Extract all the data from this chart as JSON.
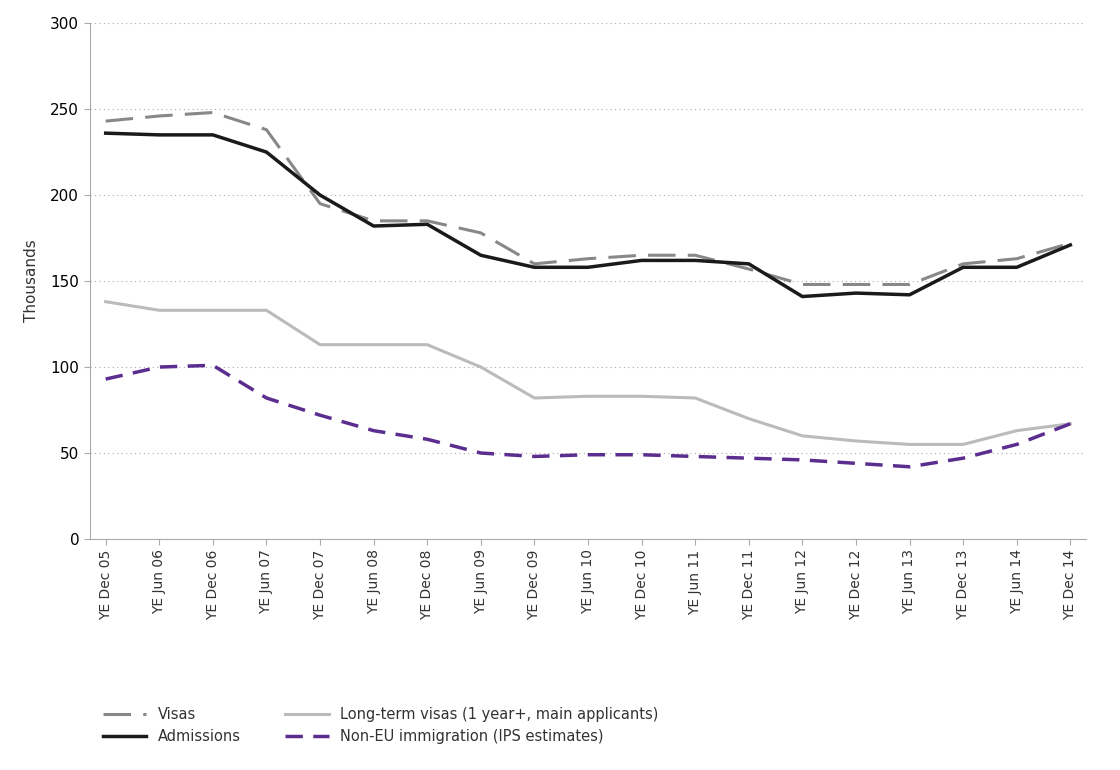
{
  "x_labels": [
    "YE Dec 05",
    "YE Jun 06",
    "YE Dec 06",
    "YE Jun 07",
    "YE Dec 07",
    "YE Jun 08",
    "YE Dec 08",
    "YE Jun 09",
    "YE Dec 09",
    "YE Jun 10",
    "YE Dec 10",
    "YE Jun 11",
    "YE Dec 11",
    "YE Jun 12",
    "YE Dec 12",
    "YE Jun 13",
    "YE Dec 13",
    "YE Jun 14",
    "YE Dec 14"
  ],
  "admissions": [
    236,
    235,
    235,
    225,
    200,
    182,
    183,
    165,
    158,
    158,
    162,
    162,
    160,
    141,
    143,
    142,
    158,
    158,
    171
  ],
  "visas": [
    243,
    246,
    248,
    238,
    195,
    185,
    185,
    178,
    160,
    163,
    165,
    165,
    157,
    148,
    148,
    148,
    160,
    163,
    172
  ],
  "long_term_visas": [
    138,
    133,
    133,
    133,
    113,
    113,
    113,
    100,
    82,
    83,
    83,
    82,
    70,
    60,
    57,
    55,
    55,
    63,
    67
  ],
  "non_eu_immigration": [
    93,
    100,
    101,
    82,
    72,
    63,
    58,
    50,
    48,
    49,
    49,
    48,
    47,
    46,
    44,
    42,
    47,
    55,
    67
  ],
  "admissions_color": "#1a1a1a",
  "visas_color": "#888888",
  "long_term_visas_color": "#bbbbbb",
  "non_eu_immigration_color": "#5b2d8e",
  "background_color": "#ffffff",
  "ylabel": "Thousands",
  "ylim": [
    0,
    300
  ],
  "yticks": [
    0,
    50,
    100,
    150,
    200,
    250,
    300
  ],
  "legend_visas": "Visas",
  "legend_admissions": "Admissions",
  "legend_long_term": "Long-term visas (1 year+, main applicants)",
  "legend_non_eu": "Non-EU immigration (IPS estimates)"
}
